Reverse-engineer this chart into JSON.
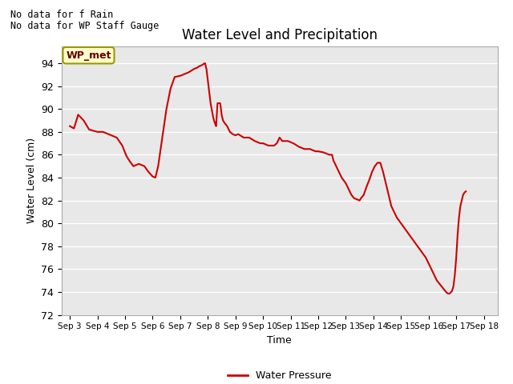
{
  "title": "Water Level and Precipitation",
  "xlabel": "Time",
  "ylabel": "Water Level (cm)",
  "ylim": [
    72,
    95.5
  ],
  "yticks": [
    72,
    74,
    76,
    78,
    80,
    82,
    84,
    86,
    88,
    90,
    92,
    94
  ],
  "plot_bg_color": "#e8e8e8",
  "line_color": "#cc0000",
  "line_width": 1.5,
  "text_no_data": [
    "No data for f Rain",
    "No data for WP Staff Gauge"
  ],
  "legend_label": "Water Pressure",
  "legend_label_box": "WP_met",
  "legend_box_facecolor": "#ffffcc",
  "legend_box_edgecolor": "#999900",
  "x_dates": [
    "Sep 3",
    "Sep 4",
    "Sep 5",
    "Sep 6",
    "Sep 7",
    "Sep 8",
    "Sep 9",
    "Sep 10",
    "Sep 11",
    "Sep 12",
    "Sep 13",
    "Sep 14",
    "Sep 15",
    "Sep 16",
    "Sep 17",
    "Sep 18"
  ],
  "x_numeric": [
    3,
    4,
    5,
    6,
    7,
    8,
    9,
    10,
    11,
    12,
    13,
    14,
    15,
    16,
    17,
    18
  ],
  "xlim": [
    2.7,
    18.5
  ],
  "y_data": [
    3.0,
    88.5,
    3.15,
    88.3,
    3.3,
    89.5,
    3.5,
    89.0,
    3.7,
    88.2,
    4.0,
    88.0,
    4.2,
    88.0,
    4.5,
    87.7,
    4.7,
    87.5,
    4.9,
    86.8,
    5.05,
    85.9,
    5.15,
    85.5,
    5.3,
    85.0,
    5.5,
    85.2,
    5.7,
    85.0,
    5.85,
    84.5,
    6.0,
    84.1,
    6.1,
    84.0,
    6.2,
    85.0,
    6.35,
    87.5,
    6.5,
    90.0,
    6.65,
    91.8,
    6.8,
    92.8,
    7.0,
    92.9,
    7.1,
    93.0,
    7.2,
    93.1,
    7.3,
    93.2,
    7.4,
    93.35,
    7.5,
    93.5,
    7.6,
    93.6,
    7.7,
    93.75,
    7.8,
    93.85,
    7.85,
    93.95,
    7.9,
    94.0,
    7.95,
    93.5,
    8.0,
    92.5,
    8.05,
    91.5,
    8.1,
    90.5,
    8.2,
    89.2,
    8.25,
    88.8,
    8.3,
    88.5,
    8.35,
    90.5,
    8.45,
    90.5,
    8.5,
    89.5,
    8.55,
    89.0,
    8.6,
    88.8,
    8.7,
    88.5,
    8.8,
    88.0,
    8.9,
    87.8,
    9.0,
    87.7,
    9.1,
    87.8,
    9.3,
    87.5,
    9.5,
    87.5,
    9.7,
    87.2,
    9.9,
    87.0,
    10.0,
    87.0,
    10.2,
    86.8,
    10.4,
    86.8,
    10.5,
    87.0,
    10.6,
    87.5,
    10.7,
    87.2,
    10.9,
    87.2,
    11.1,
    87.0,
    11.3,
    86.7,
    11.5,
    86.5,
    11.7,
    86.5,
    11.9,
    86.3,
    12.0,
    86.3,
    12.2,
    86.2,
    12.4,
    86.0,
    12.5,
    86.0,
    12.55,
    85.5,
    12.65,
    85.0,
    12.75,
    84.5,
    12.85,
    84.0,
    13.0,
    83.5,
    13.1,
    83.0,
    13.2,
    82.5,
    13.3,
    82.2,
    13.4,
    82.1,
    13.5,
    82.0,
    13.55,
    82.2,
    13.65,
    82.5,
    13.75,
    83.2,
    13.85,
    83.8,
    13.95,
    84.5,
    14.05,
    85.0,
    14.15,
    85.3,
    14.25,
    85.3,
    14.35,
    84.5,
    14.45,
    83.5,
    14.55,
    82.5,
    14.65,
    81.5,
    14.75,
    81.0,
    14.85,
    80.5,
    15.0,
    80.0,
    15.15,
    79.5,
    15.3,
    79.0,
    15.45,
    78.5,
    15.6,
    78.0,
    15.75,
    77.5,
    15.9,
    77.0,
    16.0,
    76.5,
    16.1,
    76.0,
    16.2,
    75.5,
    16.3,
    75.0,
    16.4,
    74.7,
    16.5,
    74.4,
    16.6,
    74.1,
    16.65,
    73.95,
    16.7,
    73.87,
    16.73,
    73.85,
    16.76,
    73.87,
    16.8,
    73.95,
    16.85,
    74.1,
    16.9,
    74.5,
    16.95,
    75.5,
    17.0,
    77.0,
    17.05,
    79.0,
    17.1,
    80.5,
    17.15,
    81.5,
    17.2,
    82.0,
    17.25,
    82.5,
    17.3,
    82.7,
    17.35,
    82.8
  ]
}
